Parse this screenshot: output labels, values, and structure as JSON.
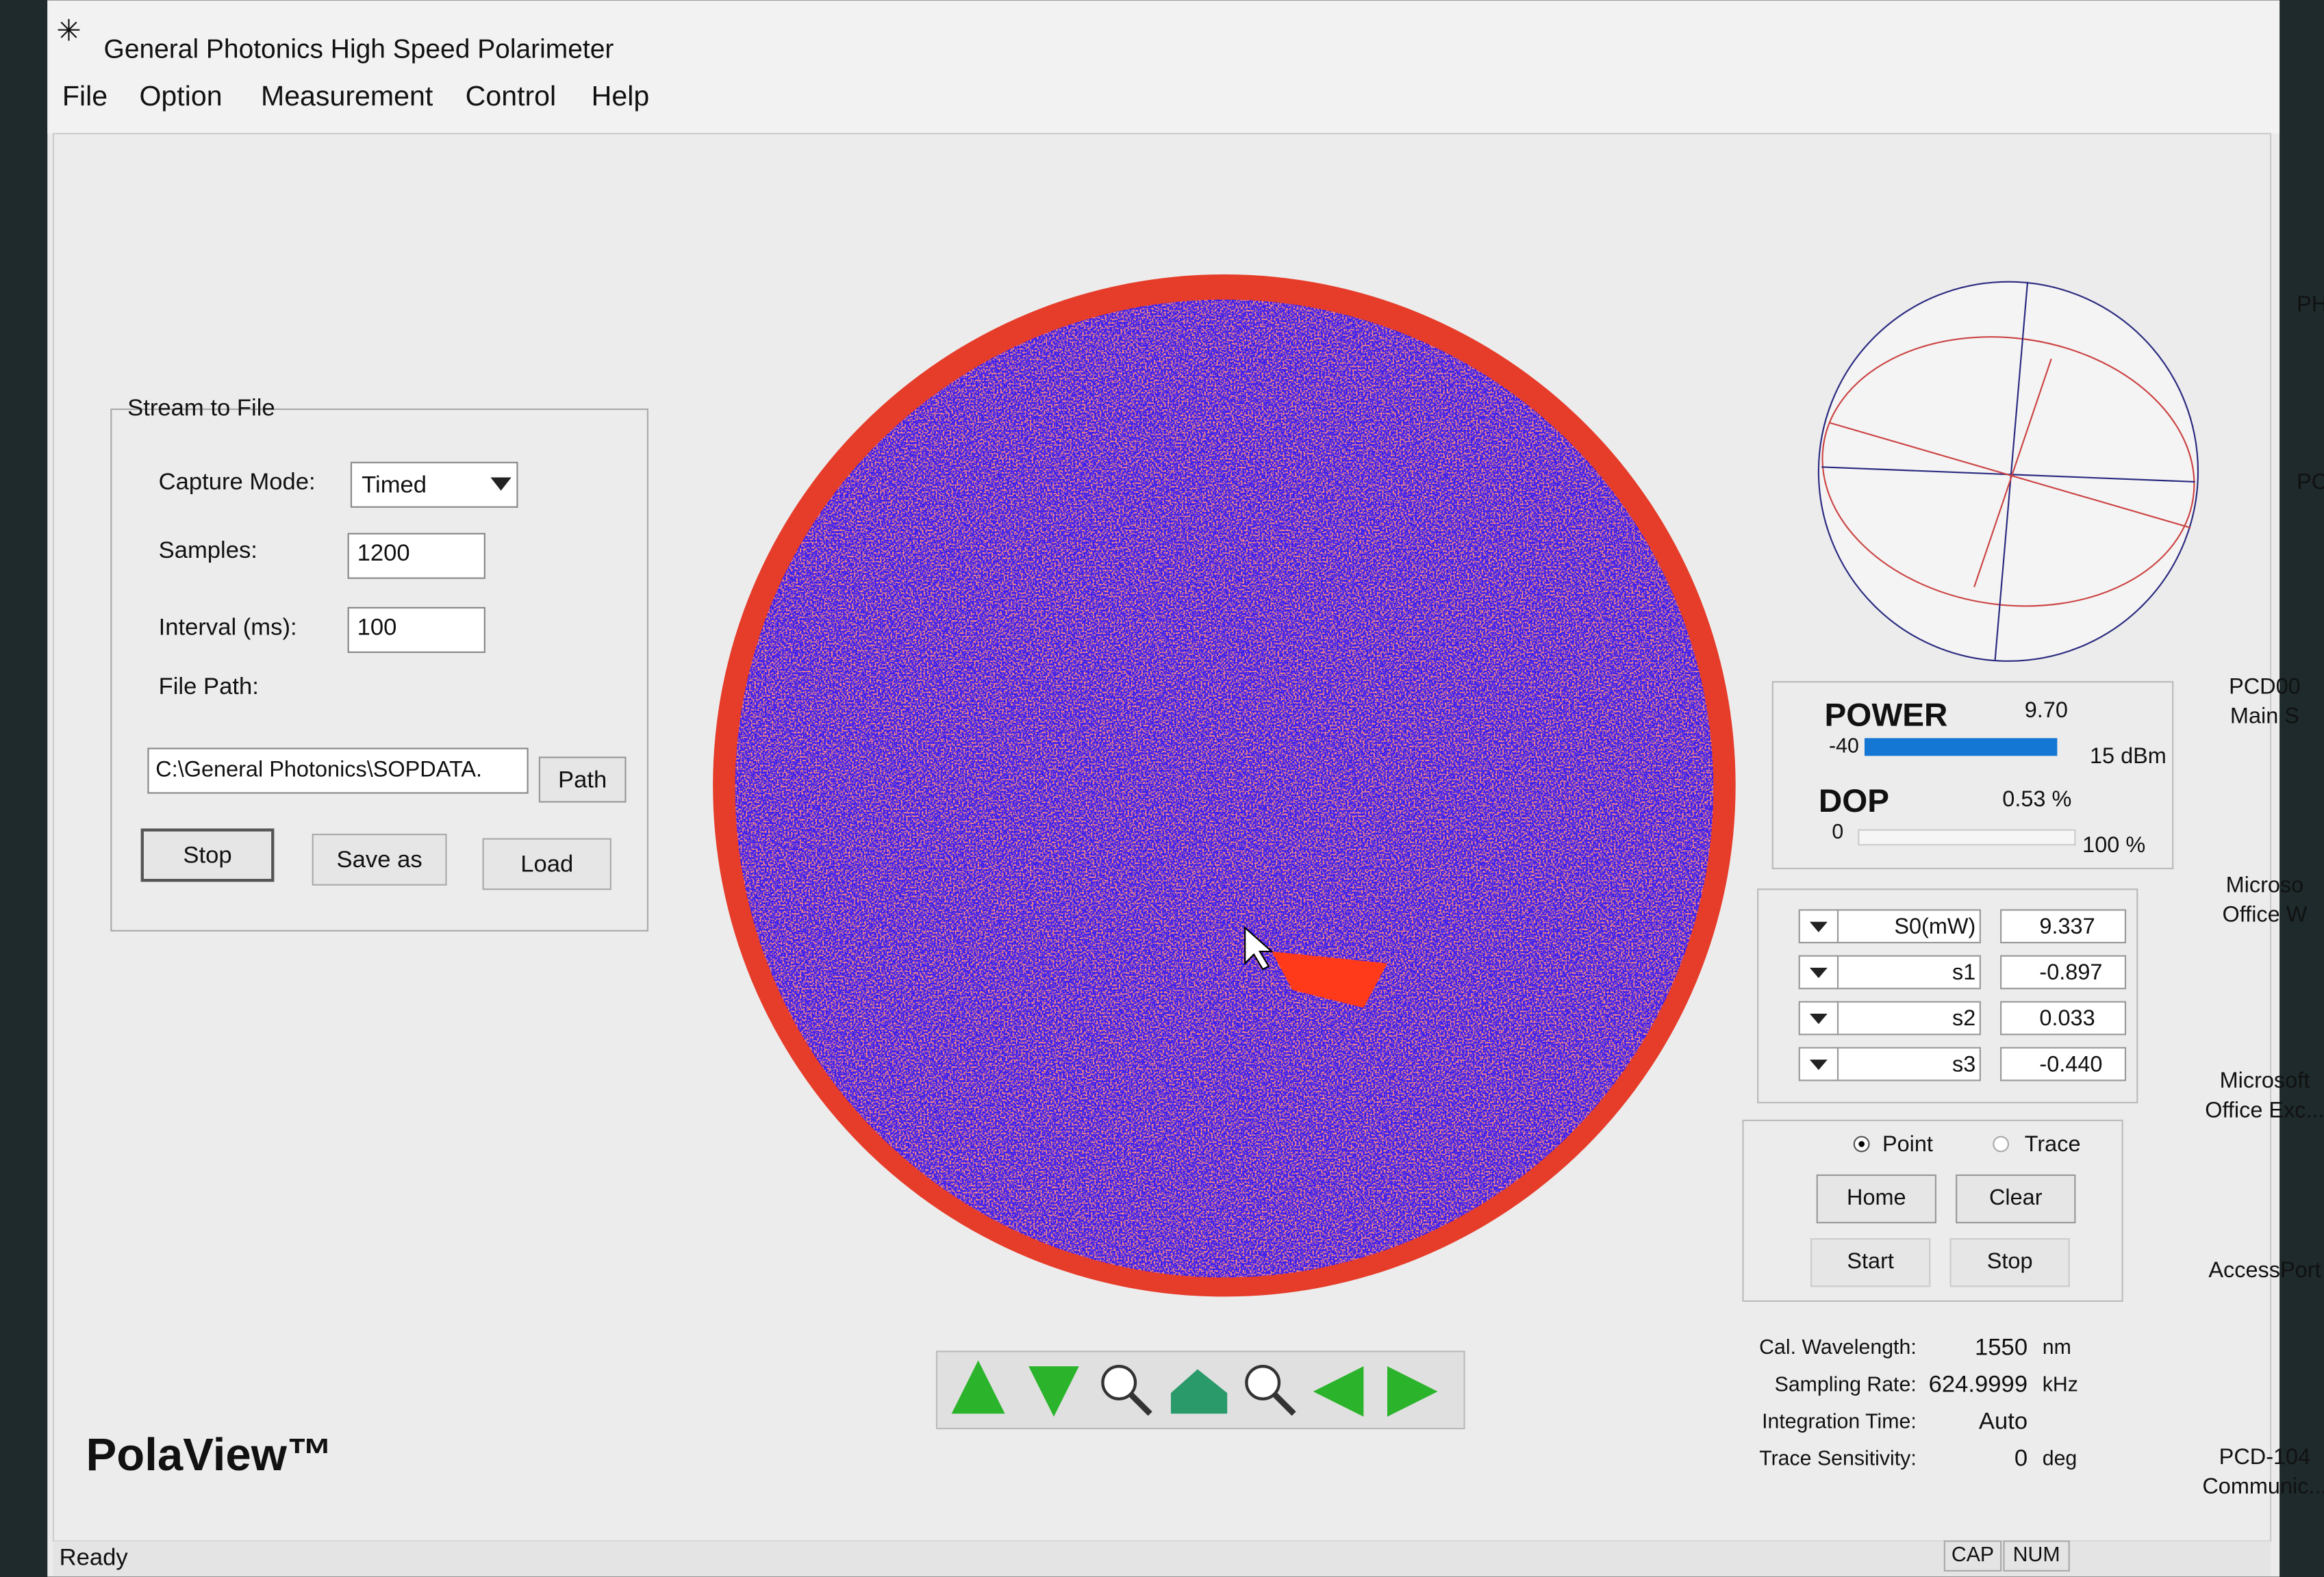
{
  "window": {
    "title": "General Photonics High Speed Polarimeter",
    "menu": [
      "File",
      "Option",
      "Measurement",
      "Control",
      "Help"
    ]
  },
  "stream": {
    "title": "Stream to File",
    "capture_mode_label": "Capture Mode:",
    "capture_mode": "Timed",
    "samples_label": "Samples:",
    "samples": "1200",
    "interval_label": "Interval (ms):",
    "interval": "100",
    "file_path_label": "File Path:",
    "file_path": "C:\\General Photonics\\SOPDATA.",
    "buttons": [
      "Path",
      "Stop",
      "Save as",
      "Load"
    ]
  },
  "power": {
    "label": "POWER",
    "value": "9.70",
    "min": "-40",
    "max": "15 dBm"
  },
  "dop": {
    "label": "DOP",
    "value": "0.53 %",
    "min": "0",
    "max": "100 %"
  },
  "stokes": [
    {
      "label": "S0(mW)",
      "value": "9.337"
    },
    {
      "label": "s1",
      "value": "-0.897"
    },
    {
      "label": "s2",
      "value": "0.033"
    },
    {
      "label": "s3",
      "value": "-0.440"
    }
  ],
  "mode": {
    "point": "Point",
    "trace": "Trace",
    "buttons": [
      "Home",
      "Clear",
      "Start",
      "Stop"
    ]
  },
  "info": [
    {
      "label": "Cal. Wavelength:",
      "value": "1550",
      "unit": "nm"
    },
    {
      "label": "Sampling Rate:",
      "value": "624.9999",
      "unit": "kHz"
    },
    {
      "label": "Integration Time:",
      "value": "Auto"
    },
    {
      "label": "Trace Sensitivity:",
      "value": "0",
      "unit": "deg"
    }
  ],
  "brand": "PolaView™",
  "status": {
    "text": "Ready",
    "indicators": [
      "CAP",
      "NUM"
    ]
  },
  "desktop_icons": [
    [
      "PH"
    ],
    [
      "PC"
    ],
    [
      "PCD00",
      "Main S"
    ],
    [
      "Microso",
      "Office W"
    ],
    [
      "Microsoft",
      "Office Exc..."
    ],
    [
      "AccessPort"
    ],
    [
      "PCD-104",
      "Communic..."
    ]
  ]
}
